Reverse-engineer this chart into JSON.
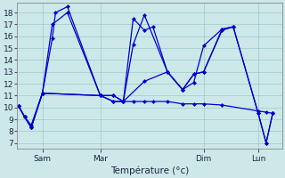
{
  "background_color": "#cce8e8",
  "grid_color": "#9fc8c8",
  "line_color": "#0000cc",
  "ylim": [
    6.5,
    18.8
  ],
  "yticks": [
    7,
    8,
    9,
    10,
    11,
    12,
    13,
    14,
    15,
    16,
    17,
    18
  ],
  "xlabel": "Température (°c)",
  "xtick_labels": [
    "Sam",
    "Mar",
    "Dim",
    "Lun"
  ],
  "series": {
    "s1_x": [
      0.0,
      0.18,
      0.38,
      0.72,
      1.02,
      1.12,
      1.48,
      2.48,
      2.88,
      3.18,
      3.48,
      3.82,
      4.08,
      4.52,
      4.98,
      5.32,
      5.62,
      6.18,
      6.52
    ],
    "s1_y": [
      10.1,
      9.2,
      8.3,
      11.2,
      15.8,
      18.0,
      18.5,
      11.0,
      11.0,
      10.5,
      17.5,
      16.5,
      16.8,
      13.0,
      11.5,
      12.8,
      13.0,
      16.6,
      16.8
    ],
    "s2_x": [
      0.0,
      0.18,
      0.38,
      0.72,
      1.02,
      1.48,
      2.48,
      2.88,
      3.18,
      3.48,
      3.82,
      4.52,
      4.98,
      5.32,
      5.62,
      6.18,
      6.52,
      7.28,
      7.52,
      7.72
    ],
    "s2_y": [
      10.1,
      9.2,
      8.3,
      11.2,
      17.0,
      18.0,
      11.0,
      11.0,
      10.5,
      15.3,
      17.8,
      13.0,
      11.5,
      12.1,
      15.2,
      16.6,
      16.8,
      9.5,
      7.0,
      9.5
    ],
    "s3_x": [
      0.0,
      0.18,
      0.38,
      0.72,
      2.48,
      2.88,
      3.18,
      3.82,
      4.52,
      4.98,
      5.32,
      5.62,
      6.18,
      6.52,
      7.28,
      7.52,
      7.72
    ],
    "s3_y": [
      10.1,
      9.2,
      8.3,
      11.2,
      11.0,
      10.5,
      10.5,
      12.2,
      13.0,
      11.5,
      12.8,
      13.0,
      16.5,
      16.8,
      9.5,
      7.0,
      9.5
    ],
    "s4_x": [
      0.0,
      0.18,
      0.38,
      0.72,
      2.48,
      2.88,
      3.18,
      3.48,
      3.82,
      4.08,
      4.52,
      4.98,
      5.32,
      5.62,
      6.18,
      7.28,
      7.52,
      7.72
    ],
    "s4_y": [
      10.1,
      9.2,
      8.5,
      11.2,
      11.0,
      10.5,
      10.5,
      10.5,
      10.5,
      10.5,
      10.5,
      10.3,
      10.3,
      10.3,
      10.2,
      9.7,
      9.6,
      9.5
    ]
  },
  "xtick_x": [
    0.72,
    2.48,
    5.62,
    7.28
  ],
  "xlim": [
    -0.05,
    8.0
  ]
}
